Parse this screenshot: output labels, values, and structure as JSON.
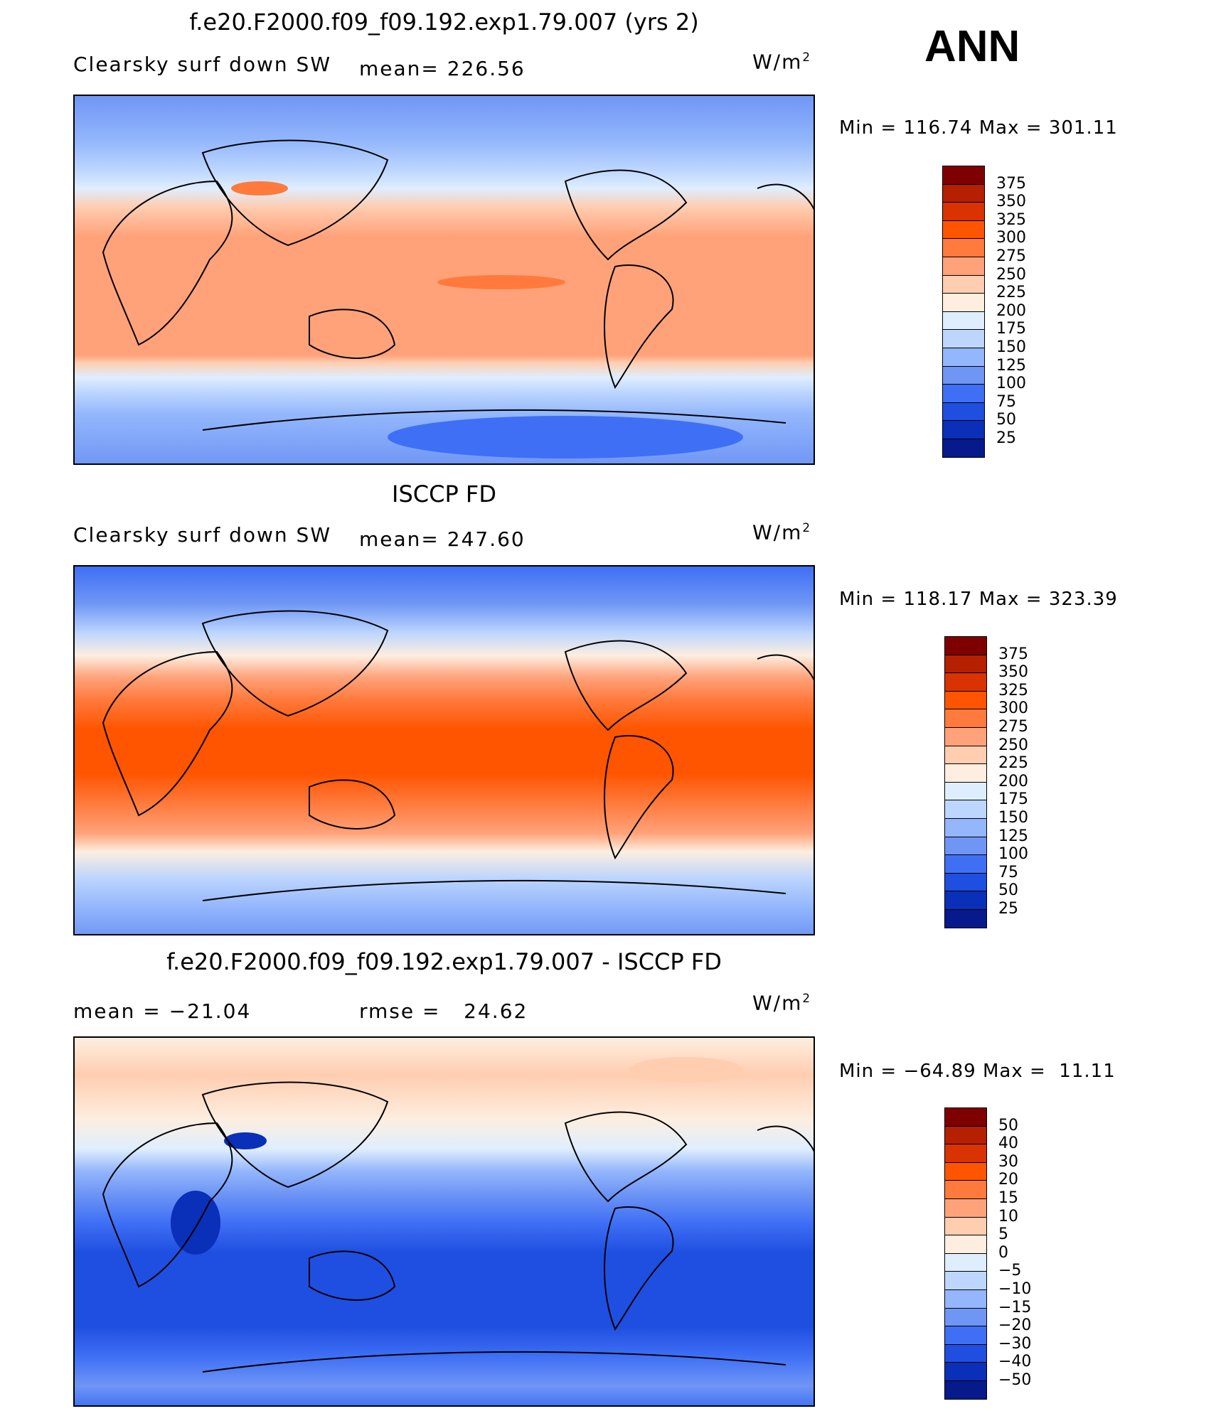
{
  "season": "ANN",
  "panels": [
    {
      "title": "f.e20.F2000.f09_f09.192.exp1.79.007 (yrs 2)",
      "left_label": "Clearsky surf down SW",
      "stat_label": "mean= 226.56",
      "units": "W/m",
      "units_exp": "2",
      "min_label": "Min",
      "min_value": "116.74",
      "max_label": "Max",
      "max_value": "301.11",
      "colorbar": {
        "levels": [
          "375",
          "350",
          "325",
          "300",
          "275",
          "250",
          "225",
          "200",
          "175",
          "150",
          "125",
          "100",
          "75",
          "50",
          "25"
        ],
        "colors": [
          "#7f0000",
          "#b52000",
          "#d83300",
          "#ff5500",
          "#ff7a3c",
          "#ffa27a",
          "#ffcdb0",
          "#fdeee0",
          "#dfeefe",
          "#bdd6fe",
          "#93b6fc",
          "#6f96f5",
          "#3f6ff5",
          "#1f4fe0",
          "#0a2fb8",
          "#061a8c"
        ]
      }
    },
    {
      "title": "ISCCP FD",
      "left_label": "Clearsky surf down SW",
      "stat_label": "mean= 247.60",
      "units": "W/m",
      "units_exp": "2",
      "min_label": "Min",
      "min_value": "118.17",
      "max_label": "Max",
      "max_value": "323.39",
      "colorbar": {
        "levels": [
          "375",
          "350",
          "325",
          "300",
          "275",
          "250",
          "225",
          "200",
          "175",
          "150",
          "125",
          "100",
          "75",
          "50",
          "25"
        ],
        "colors": [
          "#7f0000",
          "#b52000",
          "#d83300",
          "#ff5500",
          "#ff7a3c",
          "#ffa27a",
          "#ffcdb0",
          "#fdeee0",
          "#dfeefe",
          "#bdd6fe",
          "#93b6fc",
          "#6f96f5",
          "#3f6ff5",
          "#1f4fe0",
          "#0a2fb8",
          "#061a8c"
        ]
      }
    },
    {
      "title": "f.e20.F2000.f09_f09.192.exp1.79.007 - ISCCP FD",
      "left_label": "mean = −21.04",
      "stat_label": "rmse =   24.62",
      "units": "W/m",
      "units_exp": "2",
      "min_label": "Min",
      "min_value": "−64.89",
      "max_label": "Max",
      "max_value": " 11.11",
      "colorbar": {
        "levels": [
          "50",
          "40",
          "30",
          "20",
          "15",
          "10",
          "5",
          "0",
          "−5",
          "−10",
          "−15",
          "−20",
          "−30",
          "−40",
          "−50"
        ],
        "colors": [
          "#7f0000",
          "#b52000",
          "#d83300",
          "#ff5500",
          "#ff7a3c",
          "#ffa27a",
          "#ffcdb0",
          "#fdeee0",
          "#dfeefe",
          "#bdd6fe",
          "#93b6fc",
          "#6f96f5",
          "#3f6ff5",
          "#1f4fe0",
          "#0a2fb8",
          "#061a8c"
        ]
      }
    }
  ]
}
